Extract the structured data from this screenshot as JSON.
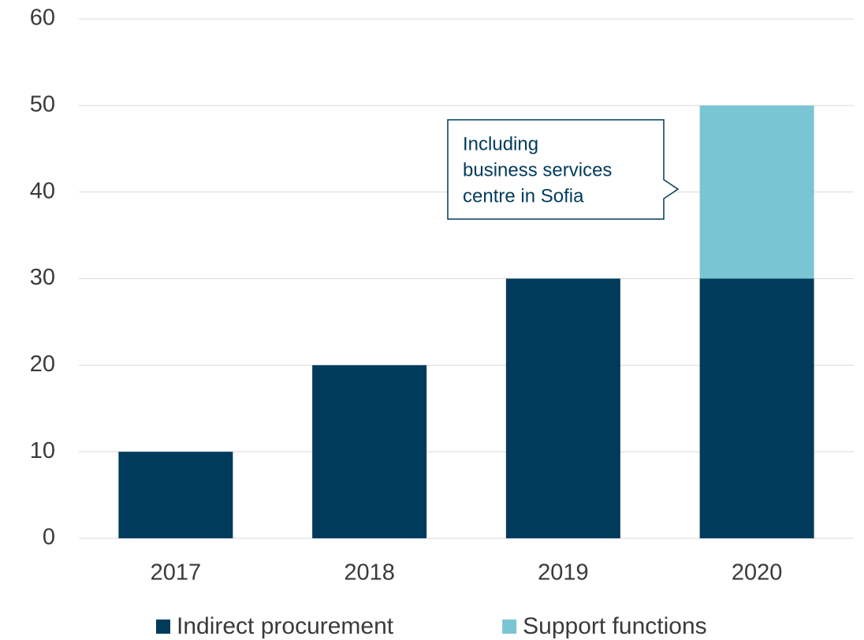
{
  "chart_data": {
    "type": "bar",
    "stacked": true,
    "categories": [
      "2017",
      "2018",
      "2019",
      "2020"
    ],
    "series": [
      {
        "name": "Indirect procurement",
        "color": "#003b5c",
        "values": [
          10,
          20,
          30,
          30
        ]
      },
      {
        "name": "Support functions",
        "color": "#7ac5d4",
        "values": [
          null,
          null,
          null,
          20
        ]
      }
    ],
    "annotation": [
      "Including",
      "business services",
      "centre in Sofia"
    ],
    "ylim": [
      0,
      60
    ],
    "yticks": [
      0,
      10,
      20,
      30,
      40,
      50,
      60
    ],
    "grid": true,
    "legend": "bottom"
  }
}
